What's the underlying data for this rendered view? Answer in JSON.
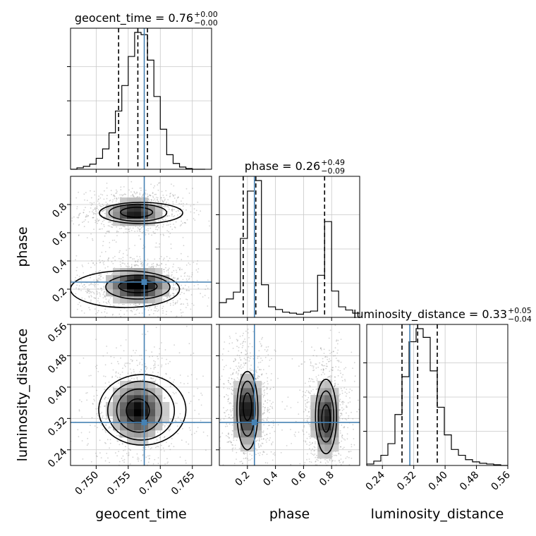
{
  "chart_data": {
    "type": "corner",
    "parameters": [
      "geocent_time",
      "phase",
      "luminosity_distance"
    ],
    "colors": {
      "truth": "#4682b4",
      "hist": "#000000",
      "grid": "#c8c8c8",
      "samples": "#808080"
    },
    "truths": {
      "geocent_time": 0.7575,
      "phase": 0.25,
      "luminosity_distance": 0.31
    },
    "grid": true,
    "marginals": [
      {
        "parameter": "geocent_time",
        "title": "geocent_time = 0.76",
        "sup": "+0.00",
        "sub": "−0.00",
        "quantiles": [
          0.7535,
          0.7565,
          0.758
        ],
        "xlim": [
          0.746,
          0.768
        ],
        "bins_x": [
          0.746,
          0.747,
          0.748,
          0.749,
          0.75,
          0.751,
          0.752,
          0.753,
          0.754,
          0.755,
          0.756,
          0.757,
          0.758,
          0.759,
          0.76,
          0.761,
          0.762,
          0.763,
          0.764,
          0.765,
          0.766,
          0.767
        ],
        "counts": [
          0,
          2,
          4,
          7,
          15,
          28,
          50,
          80,
          115,
          155,
          188,
          185,
          150,
          100,
          55,
          20,
          8,
          3,
          1,
          0,
          0
        ]
      },
      {
        "parameter": "phase",
        "title": "phase = 0.26",
        "sup": "+0.49",
        "sub": "−0.09",
        "quantiles": [
          0.17,
          0.26,
          0.75
        ],
        "xlim": [
          0.0,
          1.0
        ],
        "bins_x": [
          0.0,
          0.05,
          0.1,
          0.15,
          0.2,
          0.25,
          0.3,
          0.35,
          0.4,
          0.45,
          0.5,
          0.55,
          0.6,
          0.65,
          0.7,
          0.75,
          0.8,
          0.85,
          0.9,
          0.95,
          1.0
        ],
        "counts": [
          28,
          35,
          48,
          150,
          240,
          260,
          62,
          20,
          15,
          10,
          8,
          6,
          10,
          12,
          80,
          182,
          50,
          20,
          14,
          8
        ]
      },
      {
        "parameter": "luminosity_distance",
        "title": "luminosity_distance = 0.33",
        "sup": "+0.05",
        "sub": "−0.04",
        "quantiles": [
          0.29,
          0.33,
          0.38
        ],
        "xlim": [
          0.2,
          0.56
        ],
        "bins_x": [
          0.2,
          0.218,
          0.236,
          0.254,
          0.272,
          0.29,
          0.308,
          0.326,
          0.344,
          0.362,
          0.38,
          0.398,
          0.416,
          0.434,
          0.452,
          0.47,
          0.488,
          0.506,
          0.524,
          0.542,
          0.56
        ],
        "counts": [
          2,
          6,
          14,
          30,
          70,
          122,
          170,
          188,
          176,
          130,
          80,
          42,
          22,
          14,
          8,
          5,
          3,
          2,
          1,
          0
        ]
      }
    ],
    "axes": {
      "geocent_time": {
        "range": [
          0.746,
          0.768
        ],
        "ticks": [
          0.75,
          0.755,
          0.76,
          0.765
        ],
        "ticklabels": [
          "0.750",
          "0.755",
          "0.760",
          "0.765"
        ],
        "label": "geocent_time"
      },
      "phase": {
        "range": [
          0.0,
          1.0
        ],
        "ticks": [
          0.2,
          0.4,
          0.6,
          0.8
        ],
        "ticklabels": [
          "0.2",
          "0.4",
          "0.6",
          "0.8"
        ],
        "label": "phase"
      },
      "luminosity_distance": {
        "range": [
          0.2,
          0.56
        ],
        "ticks": [
          0.24,
          0.32,
          0.4,
          0.48,
          0.56
        ],
        "ticklabels": [
          "0.24",
          "0.32",
          "0.40",
          "0.48",
          "0.56"
        ],
        "label": "luminosity_distance"
      }
    },
    "joint": [
      {
        "x": "geocent_time",
        "y": "phase",
        "density_peaks": [
          {
            "x": 0.756,
            "y": 0.745,
            "sx": 0.0022,
            "sy": 0.045,
            "w": 1.0
          },
          {
            "x": 0.7565,
            "y": 0.225,
            "sx": 0.0025,
            "sy": 0.06,
            "w": 1.2
          }
        ],
        "contours": [
          {
            "cx": 0.7563,
            "cy": 0.745,
            "rx": 0.0025,
            "ry": 0.035
          },
          {
            "cx": 0.7565,
            "cy": 0.742,
            "rx": 0.0045,
            "ry": 0.06
          },
          {
            "cx": 0.757,
            "cy": 0.74,
            "rx": 0.0065,
            "ry": 0.075
          },
          {
            "cx": 0.7565,
            "cy": 0.22,
            "rx": 0.003,
            "ry": 0.045
          },
          {
            "cx": 0.7565,
            "cy": 0.215,
            "rx": 0.005,
            "ry": 0.085
          },
          {
            "cx": 0.7545,
            "cy": 0.2,
            "rx": 0.0085,
            "ry": 0.13
          }
        ]
      },
      {
        "x": "geocent_time",
        "y": "luminosity_distance",
        "density_peaks": [
          {
            "x": 0.7565,
            "y": 0.34,
            "sx": 0.0022,
            "sy": 0.04,
            "w": 1.0
          }
        ],
        "contours": [
          {
            "cx": 0.7565,
            "cy": 0.34,
            "rx": 0.0018,
            "ry": 0.03
          },
          {
            "cx": 0.7567,
            "cy": 0.34,
            "rx": 0.0035,
            "ry": 0.055
          },
          {
            "cx": 0.757,
            "cy": 0.34,
            "rx": 0.0052,
            "ry": 0.075
          },
          {
            "cx": 0.7572,
            "cy": 0.342,
            "rx": 0.0068,
            "ry": 0.09
          }
        ]
      },
      {
        "x": "phase",
        "y": "luminosity_distance",
        "density_peaks": [
          {
            "x": 0.2,
            "y": 0.34,
            "sx": 0.05,
            "sy": 0.05,
            "w": 1.0
          },
          {
            "x": 0.76,
            "y": 0.32,
            "sx": 0.05,
            "sy": 0.05,
            "w": 0.9
          }
        ],
        "contours": [
          {
            "cx": 0.2,
            "cy": 0.35,
            "rx": 0.03,
            "ry": 0.035
          },
          {
            "cx": 0.2,
            "cy": 0.345,
            "rx": 0.055,
            "ry": 0.07
          },
          {
            "cx": 0.2,
            "cy": 0.34,
            "rx": 0.075,
            "ry": 0.1
          },
          {
            "cx": 0.76,
            "cy": 0.32,
            "rx": 0.03,
            "ry": 0.035
          },
          {
            "cx": 0.76,
            "cy": 0.325,
            "rx": 0.055,
            "ry": 0.065
          },
          {
            "cx": 0.76,
            "cy": 0.325,
            "rx": 0.075,
            "ry": 0.095
          }
        ]
      }
    ]
  }
}
